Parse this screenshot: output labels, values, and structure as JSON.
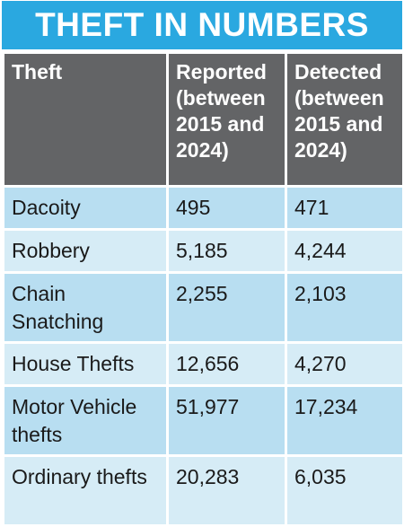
{
  "title": "THEFT IN NUMBERS",
  "headers": {
    "col1": "Theft",
    "col2": "Reported (between 2015 and 2024)",
    "col3": "Detected (between 2015 and 2024)"
  },
  "rows": [
    {
      "theft": "Dacoity",
      "reported": "495",
      "detected": "471"
    },
    {
      "theft": "Robbery",
      "reported": "5,185",
      "detected": "4,244"
    },
    {
      "theft": "Chain Snatching",
      "reported": "2,255",
      "detected": "2,103"
    },
    {
      "theft": "House Thefts",
      "reported": "12,656",
      "detected": "4,270"
    },
    {
      "theft": "Motor Vehicle thefts",
      "reported": "51,977",
      "detected": "17,234"
    },
    {
      "theft": "Ordinary thefts",
      "reported": "20,283",
      "detected": "6,035"
    }
  ],
  "colors": {
    "title_bg": "#2aa8e0",
    "header_bg": "#636466",
    "row_light": "#d6ecf6",
    "row_dark": "#b8def1"
  }
}
